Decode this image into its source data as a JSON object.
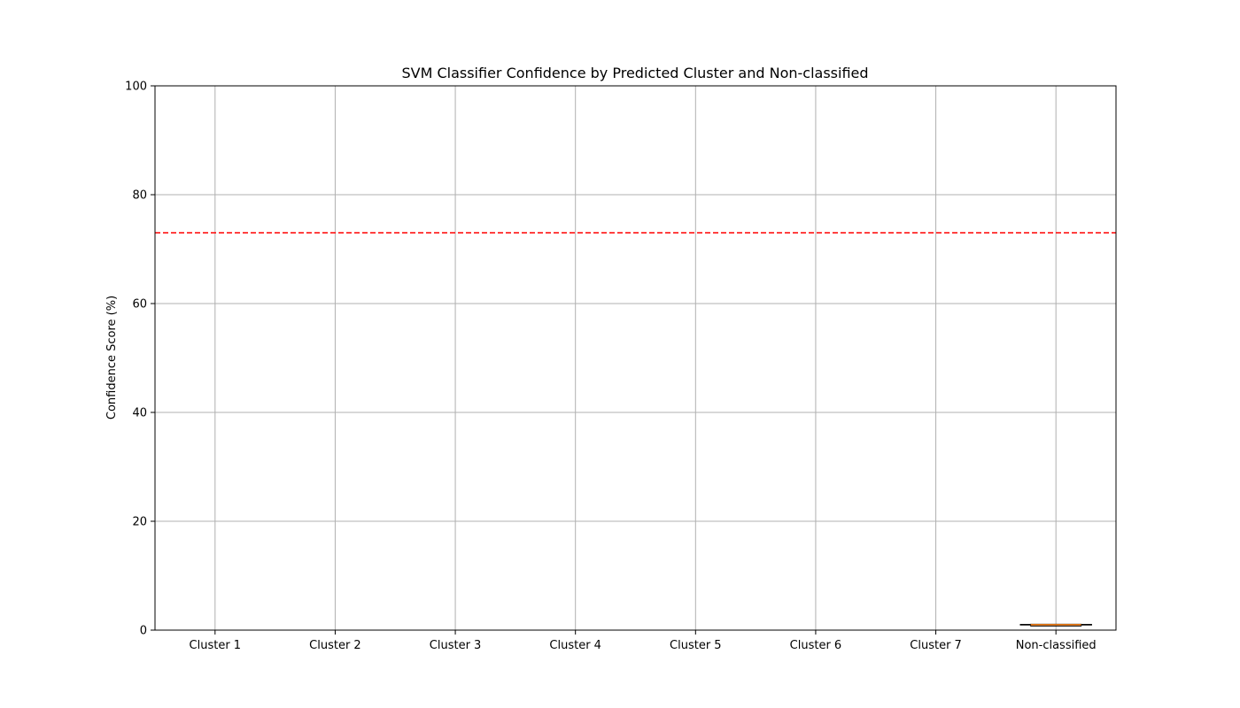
{
  "chart_data": {
    "type": "box",
    "title": "SVM Classifier Confidence by Predicted Cluster and Non-classified",
    "xlabel": "",
    "ylabel": "Confidence Score (%)",
    "ylim": [
      0,
      100
    ],
    "yticks": [
      0,
      20,
      40,
      60,
      80,
      100
    ],
    "grid": true,
    "categories": [
      "Cluster 1",
      "Cluster 2",
      "Cluster 3",
      "Cluster 4",
      "Cluster 5",
      "Cluster 6",
      "Cluster 7",
      "Non-classified"
    ],
    "boxes": [
      {
        "category": "Non-classified",
        "whisker_low": 1.0,
        "q1": 1.0,
        "median": 1.0,
        "q3": 1.0,
        "whisker_high": 1.0
      }
    ],
    "threshold": {
      "value": 73,
      "style": "dashed"
    },
    "colors": {
      "threshold": "#ff0000",
      "median": "#ff7f0e",
      "box": "#000000",
      "grid": "#b0b0b0"
    }
  }
}
